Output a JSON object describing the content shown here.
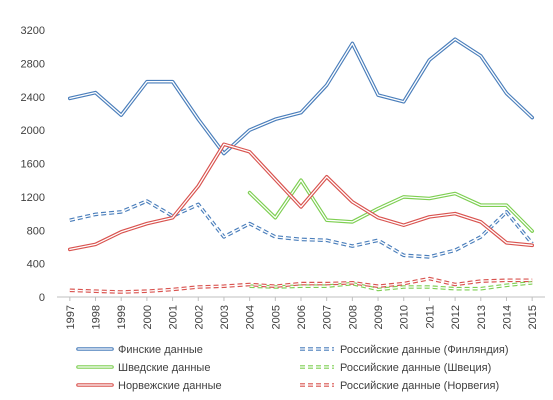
{
  "chart_data": {
    "type": "line",
    "title": "",
    "xlabel": "",
    "ylabel": "",
    "x": [
      "1997",
      "1998",
      "1999",
      "2000",
      "2001",
      "2002",
      "2003",
      "2004",
      "2005",
      "2006",
      "2007",
      "2008",
      "2009",
      "2010",
      "2011",
      "2012",
      "2013",
      "2014",
      "2015"
    ],
    "y_ticks": [
      "0",
      "400",
      "800",
      "1200",
      "1600",
      "2000",
      "2400",
      "2800",
      "3200"
    ],
    "ylim": [
      0,
      3200
    ],
    "grid": false,
    "legend_position": "bottom",
    "series": [
      {
        "name": "Финские данные",
        "color": "#4a7ebb",
        "style": "double",
        "values": [
          2380,
          2450,
          2180,
          2580,
          2580,
          2130,
          1720,
          2000,
          2130,
          2210,
          2540,
          3040,
          2420,
          2340,
          2840,
          3090,
          2890,
          2440,
          2150
        ]
      },
      {
        "name": "Российские данные (Финляндия)",
        "color": "#4a7ebb",
        "style": "double-dashed",
        "values": [
          920,
          990,
          1020,
          1150,
          970,
          1110,
          720,
          880,
          720,
          690,
          680,
          610,
          680,
          500,
          480,
          560,
          720,
          1020,
          640
        ]
      },
      {
        "name": "Шведские данные",
        "color": "#7ecf52",
        "style": "double",
        "values": [
          null,
          null,
          null,
          null,
          null,
          null,
          null,
          1250,
          950,
          1400,
          920,
          900,
          1060,
          1200,
          1180,
          1240,
          1100,
          1100,
          790
        ]
      },
      {
        "name": "Российские данные (Швеция)",
        "color": "#7ecf52",
        "style": "double-dashed",
        "values": [
          null,
          null,
          null,
          null,
          null,
          null,
          null,
          130,
          120,
          130,
          130,
          160,
          90,
          120,
          120,
          100,
          100,
          140,
          170
        ]
      },
      {
        "name": "Норвежские данные",
        "color": "#d9534f",
        "style": "double",
        "values": [
          570,
          630,
          780,
          880,
          950,
          1330,
          1830,
          1740,
          1410,
          1080,
          1440,
          1140,
          950,
          860,
          960,
          1000,
          900,
          650,
          620
        ]
      },
      {
        "name": "Российские данные (Норвегия)",
        "color": "#d9534f",
        "style": "double-dashed",
        "values": [
          80,
          70,
          60,
          70,
          90,
          120,
          130,
          150,
          130,
          160,
          160,
          170,
          130,
          160,
          220,
          150,
          190,
          200,
          200
        ]
      }
    ]
  }
}
